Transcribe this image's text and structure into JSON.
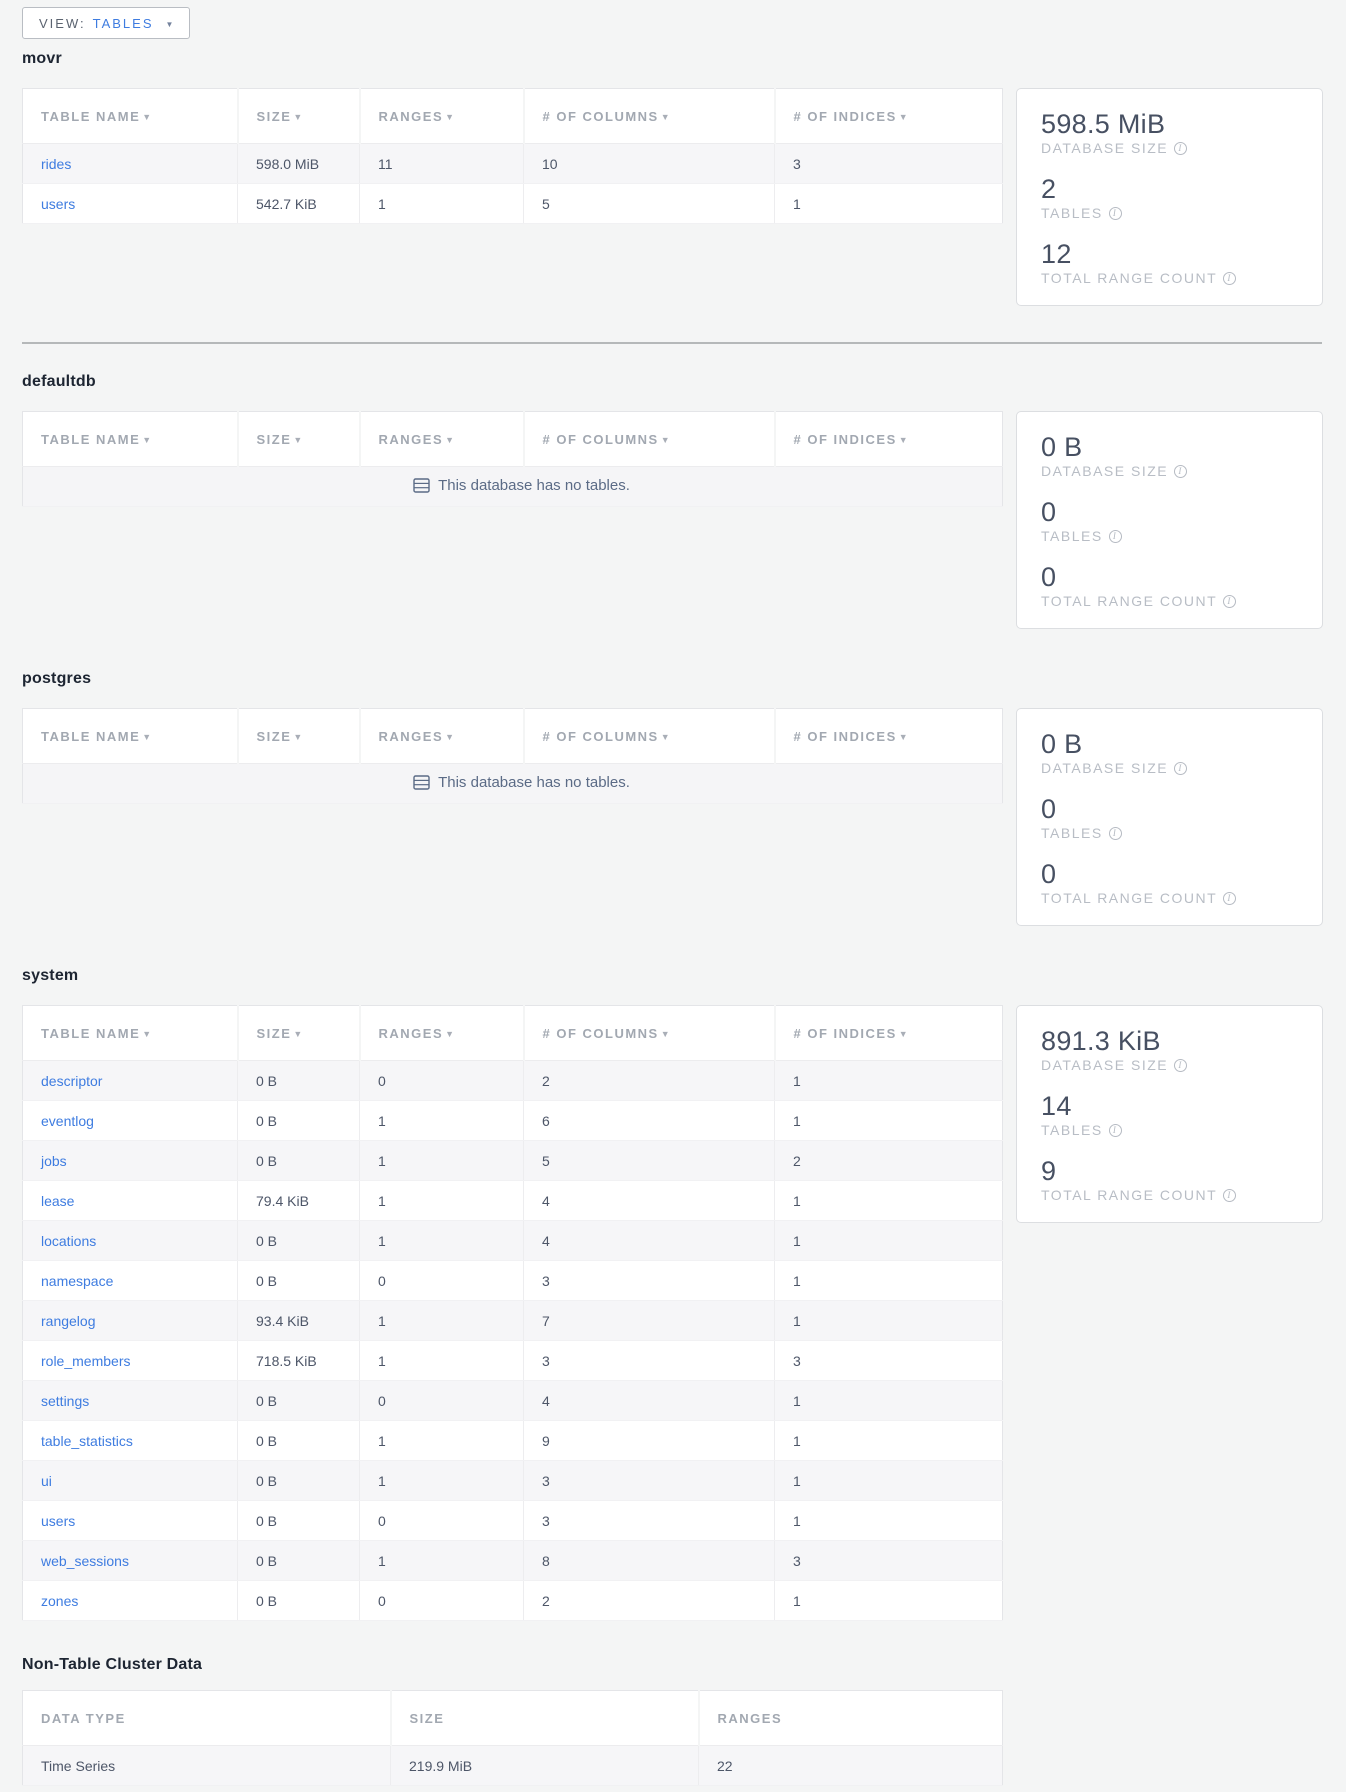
{
  "view_control": {
    "label": "VIEW:",
    "value": "TABLES"
  },
  "column_headers": [
    "TABLE NAME",
    "SIZE",
    "RANGES",
    "# OF COLUMNS",
    "# OF INDICES"
  ],
  "sort_arrow": "▼",
  "empty_message": "This database has no tables.",
  "stat_labels": {
    "size": "DATABASE SIZE",
    "tables": "TABLES",
    "ranges": "TOTAL RANGE COUNT"
  },
  "databases": [
    {
      "name": "movr",
      "rows": [
        {
          "table": "rides",
          "size": "598.0 MiB",
          "ranges": "11",
          "columns": "10",
          "indices": "3"
        },
        {
          "table": "users",
          "size": "542.7 KiB",
          "ranges": "1",
          "columns": "5",
          "indices": "1"
        }
      ],
      "stats": {
        "size": "598.5 MiB",
        "tables": "2",
        "ranges": "12"
      },
      "divider_after": true
    },
    {
      "name": "defaultdb",
      "rows": [],
      "stats": {
        "size": "0 B",
        "tables": "0",
        "ranges": "0"
      },
      "divider_after": false
    },
    {
      "name": "postgres",
      "rows": [],
      "stats": {
        "size": "0 B",
        "tables": "0",
        "ranges": "0"
      },
      "divider_after": false
    },
    {
      "name": "system",
      "rows": [
        {
          "table": "descriptor",
          "size": "0 B",
          "ranges": "0",
          "columns": "2",
          "indices": "1"
        },
        {
          "table": "eventlog",
          "size": "0 B",
          "ranges": "1",
          "columns": "6",
          "indices": "1"
        },
        {
          "table": "jobs",
          "size": "0 B",
          "ranges": "1",
          "columns": "5",
          "indices": "2"
        },
        {
          "table": "lease",
          "size": "79.4 KiB",
          "ranges": "1",
          "columns": "4",
          "indices": "1"
        },
        {
          "table": "locations",
          "size": "0 B",
          "ranges": "1",
          "columns": "4",
          "indices": "1"
        },
        {
          "table": "namespace",
          "size": "0 B",
          "ranges": "0",
          "columns": "3",
          "indices": "1"
        },
        {
          "table": "rangelog",
          "size": "93.4 KiB",
          "ranges": "1",
          "columns": "7",
          "indices": "1"
        },
        {
          "table": "role_members",
          "size": "718.5 KiB",
          "ranges": "1",
          "columns": "3",
          "indices": "3"
        },
        {
          "table": "settings",
          "size": "0 B",
          "ranges": "0",
          "columns": "4",
          "indices": "1"
        },
        {
          "table": "table_statistics",
          "size": "0 B",
          "ranges": "1",
          "columns": "9",
          "indices": "1"
        },
        {
          "table": "ui",
          "size": "0 B",
          "ranges": "1",
          "columns": "3",
          "indices": "1"
        },
        {
          "table": "users",
          "size": "0 B",
          "ranges": "0",
          "columns": "3",
          "indices": "1"
        },
        {
          "table": "web_sessions",
          "size": "0 B",
          "ranges": "1",
          "columns": "8",
          "indices": "3"
        },
        {
          "table": "zones",
          "size": "0 B",
          "ranges": "0",
          "columns": "2",
          "indices": "1"
        }
      ],
      "stats": {
        "size": "891.3 KiB",
        "tables": "14",
        "ranges": "9"
      },
      "divider_after": false
    }
  ],
  "non_table": {
    "title": "Non-Table Cluster Data",
    "headers": [
      "DATA TYPE",
      "SIZE",
      "RANGES"
    ],
    "rows": [
      {
        "data_type": "Time Series",
        "size": "219.9 MiB",
        "ranges": "22"
      }
    ]
  },
  "colors": {
    "link_blue": "#3e7ce0",
    "stat_value": "#475062",
    "header_gray": "#a2a8b1",
    "divider_gray": "#b5b8b9",
    "page_background": "#f4f5f5"
  }
}
